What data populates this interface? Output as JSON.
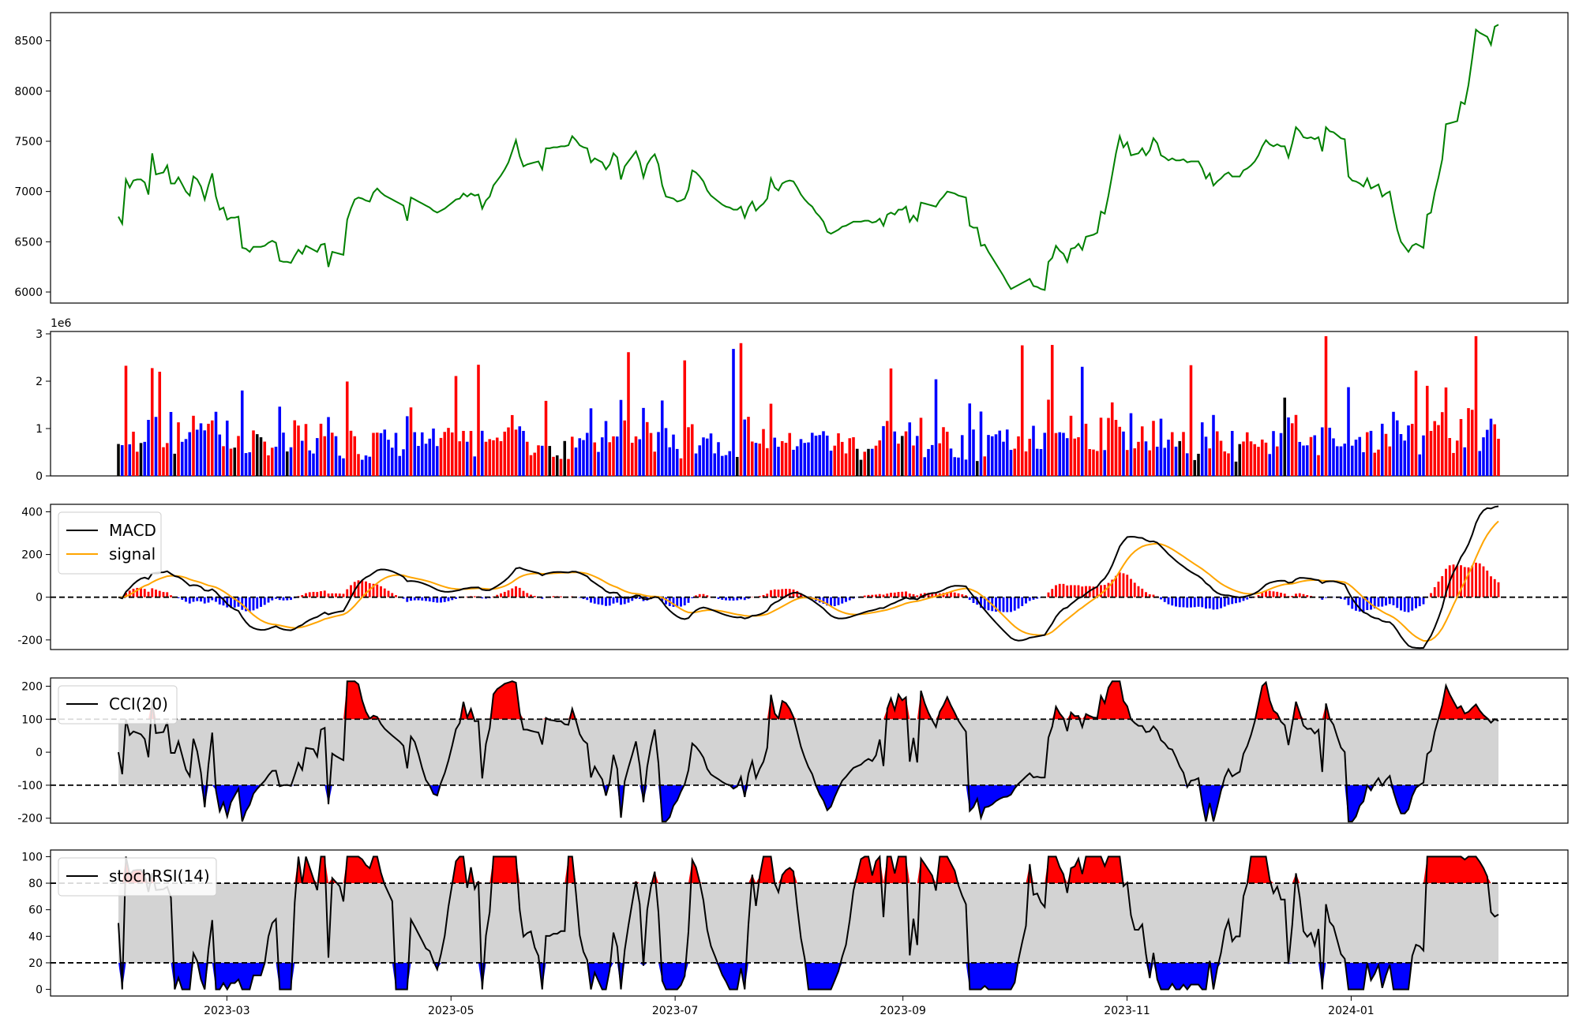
{
  "chart_data": {
    "type": "line",
    "x_axis": {
      "tick_labels": [
        "2023-03",
        "2023-05",
        "2023-07",
        "2023-09",
        "2023-11",
        "2024-01"
      ],
      "tick_dates": [
        "2023-03-01",
        "2023-05-01",
        "2023-07-01",
        "2023-09-01",
        "2023-11-01",
        "2024-01-01"
      ],
      "range": [
        "2023-01-12",
        "2024-02-29"
      ]
    },
    "colors": {
      "price": "#008000",
      "volume_up": "#ff0000",
      "volume_down": "#0000ff",
      "volume_flat": "#000000",
      "macd": "#000000",
      "signal": "#ffa500",
      "overbought": "#ff0000",
      "oversold": "#0000ff",
      "band": "#d3d3d3"
    },
    "panels": [
      {
        "id": "price",
        "type": "line",
        "ylim": [
          5890,
          8780
        ],
        "yticks": [
          6000,
          6500,
          7000,
          7500,
          8000,
          8500
        ],
        "series": [
          {
            "values": [
              6750,
              6680,
              7120,
              7040,
              7110,
              7120,
              7120,
              7090,
              6970,
              7380,
              7170,
              7180,
              7190,
              7260,
              7080,
              7080,
              7140,
              7070,
              7000,
              6960,
              7150,
              7120,
              7050,
              6920,
              7060,
              7180,
              6950,
              6820,
              6840,
              6720,
              6740,
              6740,
              6750,
              6440,
              6430,
              6400,
              6450,
              6450,
              6450,
              6460,
              6490,
              6510,
              6490,
              6310,
              6300,
              6300,
              6290,
              6360,
              6420,
              6380,
              6460,
              6440,
              6420,
              6400,
              6470,
              6480,
              6250,
              6400,
              6390,
              6380,
              6370,
              6720,
              6830,
              6920,
              6940,
              6930,
              6910,
              6900,
              6990,
              7030,
              6990,
              6960,
              6940,
              6920,
              6900,
              6880,
              6860,
              6710,
              6940,
              6920,
              6900,
              6880,
              6860,
              6840,
              6810,
              6790,
              6810,
              6830,
              6860,
              6890,
              6920,
              6930,
              6980,
              6950,
              6980,
              6960,
              6970,
              6830,
              6910,
              6950,
              7060,
              7110,
              7160,
              7220,
              7290,
              7400,
              7510,
              7350,
              7250,
              7270,
              7280,
              7290,
              7300,
              7220,
              7430,
              7430,
              7440,
              7440,
              7450,
              7450,
              7460,
              7550,
              7510,
              7460,
              7440,
              7430,
              7290,
              7330,
              7310,
              7290,
              7220,
              7270,
              7380,
              7340,
              7120,
              7250,
              7300,
              7350,
              7400,
              7300,
              7140,
              7270,
              7330,
              7370,
              7270,
              7060,
              6950,
              6940,
              6930,
              6900,
              6910,
              6930,
              7020,
              7210,
              7190,
              7150,
              7100,
              7010,
              6960,
              6930,
              6900,
              6870,
              6850,
              6840,
              6820,
              6820,
              6850,
              6740,
              6840,
              6900,
              6810,
              6850,
              6880,
              6930,
              7130,
              7040,
              7010,
              7080,
              7100,
              7110,
              7100,
              7040,
              6970,
              6920,
              6880,
              6850,
              6790,
              6750,
              6700,
              6600,
              6580,
              6600,
              6620,
              6650,
              6660,
              6680,
              6700,
              6700,
              6700,
              6710,
              6710,
              6690,
              6700,
              6730,
              6660,
              6770,
              6790,
              6770,
              6820,
              6820,
              6850,
              6700,
              6760,
              6710,
              6890,
              6880,
              6870,
              6860,
              6850,
              6910,
              6950,
              7000,
              6990,
              6980,
              6960,
              6950,
              6940,
              6660,
              6640,
              6640,
              6460,
              6470,
              6400,
              6340,
              6280,
              6220,
              6160,
              6090,
              6030,
              6050,
              6070,
              6090,
              6110,
              6130,
              6060,
              6050,
              6030,
              6020,
              6300,
              6340,
              6460,
              6410,
              6380,
              6300,
              6430,
              6440,
              6480,
              6420,
              6550,
              6560,
              6570,
              6590,
              6800,
              6780,
              6960,
              7170,
              7380,
              7550,
              7440,
              7490,
              7360,
              7370,
              7380,
              7430,
              7360,
              7410,
              7530,
              7480,
              7360,
              7340,
              7310,
              7330,
              7310,
              7310,
              7320,
              7290,
              7300,
              7300,
              7300,
              7230,
              7130,
              7180,
              7060,
              7100,
              7130,
              7170,
              7190,
              7150,
              7150,
              7150,
              7210,
              7230,
              7260,
              7300,
              7360,
              7450,
              7510,
              7470,
              7450,
              7470,
              7450,
              7450,
              7340,
              7480,
              7640,
              7600,
              7540,
              7530,
              7540,
              7520,
              7540,
              7400,
              7640,
              7600,
              7590,
              7560,
              7530,
              7520,
              7150,
              7110,
              7100,
              7080,
              7050,
              7130,
              7030,
              7050,
              7070,
              6950,
              6980,
              7000,
              6800,
              6620,
              6500,
              6450,
              6400,
              6460,
              6480,
              6460,
              6440,
              6770,
              6790,
              6990,
              7140,
              7320,
              7670,
              7680,
              7690,
              7700,
              7890,
              7870,
              8060,
              8330,
              8610,
              8580,
              8560,
              8540,
              8460,
              8640,
              8660
            ]
          }
        ]
      },
      {
        "id": "volume",
        "type": "bar",
        "ylim": [
          0,
          3050000
        ],
        "yticks": [
          0,
          1000000,
          2000000,
          3000000
        ],
        "ytick_labels": [
          "0",
          "1",
          "2",
          "3"
        ],
        "scale_label": "1e6"
      },
      {
        "id": "macd",
        "type": "line",
        "ylim": [
          -245,
          435
        ],
        "yticks": [
          -200,
          0,
          200,
          400
        ],
        "reference_lines": [
          0
        ],
        "legend": {
          "entries": [
            "MACD",
            "signal"
          ],
          "loc": "upper left"
        }
      },
      {
        "id": "cci",
        "type": "area",
        "ylim": [
          -215,
          225
        ],
        "yticks": [
          -200,
          -100,
          0,
          100,
          200
        ],
        "reference_lines": [
          100,
          -100
        ],
        "legend": {
          "entries": [
            "CCI(20)"
          ],
          "loc": "upper left"
        }
      },
      {
        "id": "stochrsi",
        "type": "area",
        "ylim": [
          -5,
          105
        ],
        "yticks": [
          0,
          20,
          40,
          60,
          80,
          100
        ],
        "reference_lines": [
          80,
          20
        ],
        "legend": {
          "entries": [
            "stochRSI(14)"
          ],
          "loc": "upper left"
        }
      }
    ]
  }
}
